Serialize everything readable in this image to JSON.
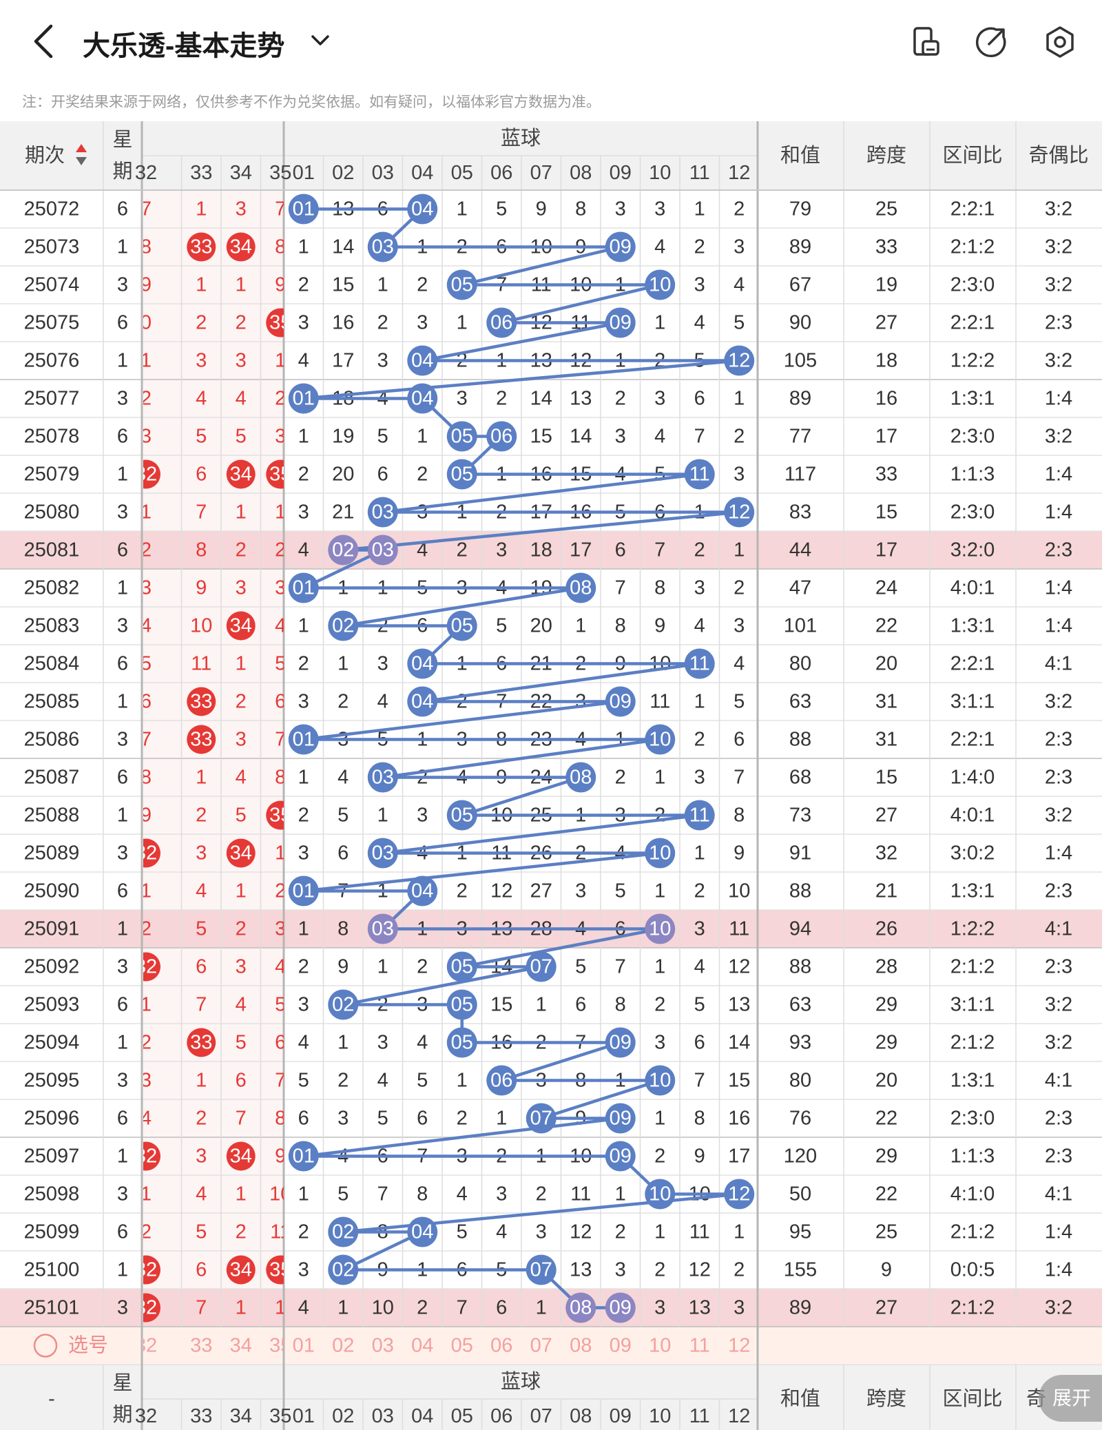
{
  "header": {
    "title": "大乐透-基本走势",
    "icons": [
      "back-arrow-icon",
      "chevron-down-icon",
      "layout-icon",
      "share-icon",
      "settings-hex-icon"
    ]
  },
  "notice": "注：开奖结果来源于网络，仅供参考不作为兑奖依据。如有疑问，以福体彩官方数据为准。",
  "columns": {
    "period": "期次",
    "week": "星期",
    "week_bottom": [
      "星",
      "期"
    ],
    "red_visible": [
      "32",
      "33",
      "34",
      "35"
    ],
    "blue_group": "蓝球",
    "blue": [
      "01",
      "02",
      "03",
      "04",
      "05",
      "06",
      "07",
      "08",
      "09",
      "10",
      "11",
      "12"
    ],
    "sum": "和值",
    "span": "跨度",
    "zone": "区间比",
    "odd_even": "奇偶比"
  },
  "select_row": {
    "label": "选号",
    "red": [
      "32",
      "33",
      "34",
      "35"
    ],
    "blue": [
      "01",
      "02",
      "03",
      "04",
      "05",
      "06",
      "07",
      "08",
      "09",
      "10",
      "11",
      "12"
    ]
  },
  "footer_dash": "-",
  "footer_oe_partial": "奇",
  "expand_label": "展开",
  "colors": {
    "red": "#e53935",
    "blue": "#5b7fc4",
    "highlight_row": "#f6d6d8",
    "select_row": "#fff1ea"
  },
  "rows": [
    {
      "period": "25072",
      "week": "6",
      "red": [
        "7",
        "1",
        "3",
        "7"
      ],
      "blue": [
        "01",
        "13",
        "6",
        "04",
        "1",
        "5",
        "9",
        "8",
        "3",
        "3",
        "1",
        "2"
      ],
      "sum": "79",
      "span": "25",
      "zone": "2:2:1",
      "oe": "3:2"
    },
    {
      "period": "25073",
      "week": "1",
      "red": [
        "8",
        "33",
        "34",
        "8"
      ],
      "blue": [
        "1",
        "14",
        "03",
        "1",
        "2",
        "6",
        "10",
        "9",
        "09",
        "4",
        "2",
        "3"
      ],
      "sum": "89",
      "span": "33",
      "zone": "2:1:2",
      "oe": "3:2"
    },
    {
      "period": "25074",
      "week": "3",
      "red": [
        "9",
        "1",
        "1",
        "9"
      ],
      "blue": [
        "2",
        "15",
        "1",
        "2",
        "05",
        "7",
        "11",
        "10",
        "1",
        "10",
        "3",
        "4"
      ],
      "sum": "67",
      "span": "19",
      "zone": "2:3:0",
      "oe": "3:2"
    },
    {
      "period": "25075",
      "week": "6",
      "red": [
        "0",
        "2",
        "2",
        "35"
      ],
      "blue": [
        "3",
        "16",
        "2",
        "3",
        "1",
        "06",
        "12",
        "11",
        "09",
        "1",
        "4",
        "5"
      ],
      "sum": "90",
      "span": "27",
      "zone": "2:2:1",
      "oe": "2:3"
    },
    {
      "period": "25076",
      "week": "1",
      "red": [
        "1",
        "3",
        "3",
        "1"
      ],
      "blue": [
        "4",
        "17",
        "3",
        "04",
        "2",
        "1",
        "13",
        "12",
        "1",
        "2",
        "5",
        "12"
      ],
      "sum": "105",
      "span": "18",
      "zone": "1:2:2",
      "oe": "3:2"
    },
    {
      "period": "25077",
      "week": "3",
      "red": [
        "2",
        "4",
        "4",
        "2"
      ],
      "blue": [
        "01",
        "18",
        "4",
        "04",
        "3",
        "2",
        "14",
        "13",
        "2",
        "3",
        "6",
        "1"
      ],
      "sum": "89",
      "span": "16",
      "zone": "1:3:1",
      "oe": "1:4"
    },
    {
      "period": "25078",
      "week": "6",
      "red": [
        "3",
        "5",
        "5",
        "3"
      ],
      "blue": [
        "1",
        "19",
        "5",
        "1",
        "05",
        "06",
        "15",
        "14",
        "3",
        "4",
        "7",
        "2"
      ],
      "sum": "77",
      "span": "17",
      "zone": "2:3:0",
      "oe": "3:2"
    },
    {
      "period": "25079",
      "week": "1",
      "red": [
        "32",
        "6",
        "34",
        "35"
      ],
      "blue": [
        "2",
        "20",
        "6",
        "2",
        "05",
        "1",
        "16",
        "15",
        "4",
        "5",
        "11",
        "3"
      ],
      "sum": "117",
      "span": "33",
      "zone": "1:1:3",
      "oe": "1:4"
    },
    {
      "period": "25080",
      "week": "3",
      "red": [
        "1",
        "7",
        "1",
        "1"
      ],
      "blue": [
        "3",
        "21",
        "03",
        "3",
        "1",
        "2",
        "17",
        "16",
        "5",
        "6",
        "1",
        "12"
      ],
      "sum": "83",
      "span": "15",
      "zone": "2:3:0",
      "oe": "1:4"
    },
    {
      "period": "25081",
      "week": "6",
      "red": [
        "2",
        "8",
        "2",
        "2"
      ],
      "blue": [
        "4",
        "02",
        "03",
        "4",
        "2",
        "3",
        "18",
        "17",
        "6",
        "7",
        "2",
        "1"
      ],
      "sum": "44",
      "span": "17",
      "zone": "3:2:0",
      "oe": "2:3",
      "highlight": true
    },
    {
      "period": "25082",
      "week": "1",
      "red": [
        "3",
        "9",
        "3",
        "3"
      ],
      "blue": [
        "01",
        "1",
        "1",
        "5",
        "3",
        "4",
        "19",
        "08",
        "7",
        "8",
        "3",
        "2"
      ],
      "sum": "47",
      "span": "24",
      "zone": "4:0:1",
      "oe": "1:4"
    },
    {
      "period": "25083",
      "week": "3",
      "red": [
        "4",
        "10",
        "34",
        "4"
      ],
      "blue": [
        "1",
        "02",
        "2",
        "6",
        "05",
        "5",
        "20",
        "1",
        "8",
        "9",
        "4",
        "3"
      ],
      "sum": "101",
      "span": "22",
      "zone": "1:3:1",
      "oe": "1:4"
    },
    {
      "period": "25084",
      "week": "6",
      "red": [
        "5",
        "11",
        "1",
        "5"
      ],
      "blue": [
        "2",
        "1",
        "3",
        "04",
        "1",
        "6",
        "21",
        "2",
        "9",
        "10",
        "11",
        "4"
      ],
      "sum": "80",
      "span": "20",
      "zone": "2:2:1",
      "oe": "4:1"
    },
    {
      "period": "25085",
      "week": "1",
      "red": [
        "6",
        "33",
        "2",
        "6"
      ],
      "blue": [
        "3",
        "2",
        "4",
        "04",
        "2",
        "7",
        "22",
        "3",
        "09",
        "11",
        "1",
        "5"
      ],
      "sum": "63",
      "span": "31",
      "zone": "3:1:1",
      "oe": "3:2"
    },
    {
      "period": "25086",
      "week": "3",
      "red": [
        "7",
        "33",
        "3",
        "7"
      ],
      "blue": [
        "01",
        "3",
        "5",
        "1",
        "3",
        "8",
        "23",
        "4",
        "1",
        "10",
        "2",
        "6"
      ],
      "sum": "88",
      "span": "31",
      "zone": "2:2:1",
      "oe": "2:3"
    },
    {
      "period": "25087",
      "week": "6",
      "red": [
        "8",
        "1",
        "4",
        "8"
      ],
      "blue": [
        "1",
        "4",
        "03",
        "2",
        "4",
        "9",
        "24",
        "08",
        "2",
        "1",
        "3",
        "7"
      ],
      "sum": "68",
      "span": "15",
      "zone": "1:4:0",
      "oe": "2:3"
    },
    {
      "period": "25088",
      "week": "1",
      "red": [
        "9",
        "2",
        "5",
        "35"
      ],
      "blue": [
        "2",
        "5",
        "1",
        "3",
        "05",
        "10",
        "25",
        "1",
        "3",
        "2",
        "11",
        "8"
      ],
      "sum": "73",
      "span": "27",
      "zone": "4:0:1",
      "oe": "3:2"
    },
    {
      "period": "25089",
      "week": "3",
      "red": [
        "32",
        "3",
        "34",
        "1"
      ],
      "blue": [
        "3",
        "6",
        "03",
        "4",
        "1",
        "11",
        "26",
        "2",
        "4",
        "10",
        "1",
        "9"
      ],
      "sum": "91",
      "span": "32",
      "zone": "3:0:2",
      "oe": "1:4"
    },
    {
      "period": "25090",
      "week": "6",
      "red": [
        "1",
        "4",
        "1",
        "2"
      ],
      "blue": [
        "01",
        "7",
        "1",
        "04",
        "2",
        "12",
        "27",
        "3",
        "5",
        "1",
        "2",
        "10"
      ],
      "sum": "88",
      "span": "21",
      "zone": "1:3:1",
      "oe": "2:3"
    },
    {
      "period": "25091",
      "week": "1",
      "red": [
        "2",
        "5",
        "2",
        "3"
      ],
      "blue": [
        "1",
        "8",
        "03",
        "1",
        "3",
        "13",
        "28",
        "4",
        "6",
        "10",
        "3",
        "11"
      ],
      "sum": "94",
      "span": "26",
      "zone": "1:2:2",
      "oe": "4:1",
      "highlight": true
    },
    {
      "period": "25092",
      "week": "3",
      "red": [
        "32",
        "6",
        "3",
        "4"
      ],
      "blue": [
        "2",
        "9",
        "1",
        "2",
        "05",
        "14",
        "07",
        "5",
        "7",
        "1",
        "4",
        "12"
      ],
      "sum": "88",
      "span": "28",
      "zone": "2:1:2",
      "oe": "2:3"
    },
    {
      "period": "25093",
      "week": "6",
      "red": [
        "1",
        "7",
        "4",
        "5"
      ],
      "blue": [
        "3",
        "02",
        "2",
        "3",
        "05",
        "15",
        "1",
        "6",
        "8",
        "2",
        "5",
        "13"
      ],
      "sum": "63",
      "span": "29",
      "zone": "3:1:1",
      "oe": "3:2"
    },
    {
      "period": "25094",
      "week": "1",
      "red": [
        "2",
        "33",
        "5",
        "6"
      ],
      "blue": [
        "4",
        "1",
        "3",
        "4",
        "05",
        "16",
        "2",
        "7",
        "09",
        "3",
        "6",
        "14"
      ],
      "sum": "93",
      "span": "29",
      "zone": "2:1:2",
      "oe": "3:2"
    },
    {
      "period": "25095",
      "week": "3",
      "red": [
        "3",
        "1",
        "6",
        "7"
      ],
      "blue": [
        "5",
        "2",
        "4",
        "5",
        "1",
        "06",
        "3",
        "8",
        "1",
        "10",
        "7",
        "15"
      ],
      "sum": "80",
      "span": "20",
      "zone": "1:3:1",
      "oe": "4:1"
    },
    {
      "period": "25096",
      "week": "6",
      "red": [
        "4",
        "2",
        "7",
        "8"
      ],
      "blue": [
        "6",
        "3",
        "5",
        "6",
        "2",
        "1",
        "07",
        "9",
        "09",
        "1",
        "8",
        "16"
      ],
      "sum": "76",
      "span": "22",
      "zone": "2:3:0",
      "oe": "2:3"
    },
    {
      "period": "25097",
      "week": "1",
      "red": [
        "32",
        "3",
        "34",
        "9"
      ],
      "blue": [
        "01",
        "4",
        "6",
        "7",
        "3",
        "2",
        "1",
        "10",
        "09",
        "2",
        "9",
        "17"
      ],
      "sum": "120",
      "span": "29",
      "zone": "1:1:3",
      "oe": "2:3"
    },
    {
      "period": "25098",
      "week": "3",
      "red": [
        "1",
        "4",
        "1",
        "10"
      ],
      "blue": [
        "1",
        "5",
        "7",
        "8",
        "4",
        "3",
        "2",
        "11",
        "1",
        "10",
        "10",
        "12"
      ],
      "sum": "50",
      "span": "22",
      "zone": "4:1:0",
      "oe": "4:1"
    },
    {
      "period": "25099",
      "week": "6",
      "red": [
        "2",
        "5",
        "2",
        "11"
      ],
      "blue": [
        "2",
        "02",
        "8",
        "04",
        "5",
        "4",
        "3",
        "12",
        "2",
        "1",
        "11",
        "1"
      ],
      "sum": "95",
      "span": "25",
      "zone": "2:1:2",
      "oe": "1:4"
    },
    {
      "period": "25100",
      "week": "1",
      "red": [
        "32",
        "6",
        "34",
        "35"
      ],
      "blue": [
        "3",
        "02",
        "9",
        "1",
        "6",
        "5",
        "07",
        "13",
        "3",
        "2",
        "12",
        "2"
      ],
      "sum": "155",
      "span": "9",
      "zone": "0:0:5",
      "oe": "1:4"
    },
    {
      "period": "25101",
      "week": "3",
      "red": [
        "32",
        "7",
        "1",
        "1"
      ],
      "blue": [
        "4",
        "1",
        "10",
        "2",
        "7",
        "6",
        "1",
        "08",
        "09",
        "3",
        "13",
        "3"
      ],
      "sum": "89",
      "span": "27",
      "zone": "2:1:2",
      "oe": "3:2",
      "highlight": true
    }
  ],
  "blue_hits": [
    [
      1,
      4
    ],
    [
      3,
      9
    ],
    [
      5,
      10
    ],
    [
      6,
      9
    ],
    [
      4,
      12
    ],
    [
      1,
      4
    ],
    [
      5,
      6
    ],
    [
      5,
      11
    ],
    [
      3,
      12
    ],
    [
      2,
      3
    ],
    [
      1,
      8
    ],
    [
      2,
      5
    ],
    [
      4,
      11
    ],
    [
      4,
      9
    ],
    [
      1,
      10
    ],
    [
      3,
      8
    ],
    [
      5,
      11
    ],
    [
      3,
      10
    ],
    [
      1,
      4
    ],
    [
      3,
      10
    ],
    [
      5,
      7
    ],
    [
      2,
      5
    ],
    [
      5,
      9
    ],
    [
      6,
      10
    ],
    [
      7,
      9
    ],
    [
      1,
      9
    ],
    [
      10,
      12
    ],
    [
      2,
      4
    ],
    [
      2,
      7
    ],
    [
      8,
      9
    ]
  ],
  "red_hits": [
    [],
    [
      33,
      34
    ],
    [],
    [
      35
    ],
    [],
    [],
    [],
    [
      32,
      34,
      35
    ],
    [],
    [],
    [],
    [
      34
    ],
    [],
    [
      33
    ],
    [
      33
    ],
    [],
    [
      35
    ],
    [
      32,
      34
    ],
    [],
    [],
    [
      32
    ],
    [],
    [
      33
    ],
    [],
    [],
    [
      32,
      34
    ],
    [],
    [],
    [
      32,
      34,
      35
    ],
    [
      32
    ]
  ]
}
